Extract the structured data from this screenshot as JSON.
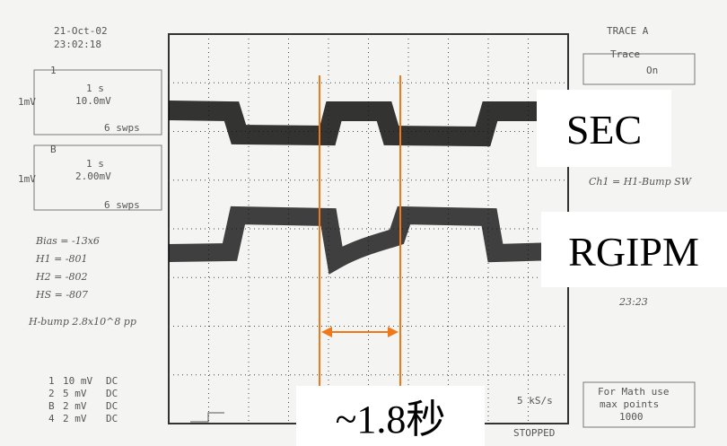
{
  "scope": {
    "date": "21-Oct-02",
    "time": "23:02:18",
    "trace_title": "TRACE A",
    "trace_label": "Trace",
    "trace_state": "On",
    "channel_1": {
      "number": "1",
      "scale_label": "1mV",
      "time": "1 s",
      "volts": "10.0mV",
      "sweeps": "6 swps"
    },
    "channel_2": {
      "number": "B",
      "scale_label": "1mV",
      "time": "1 s",
      "volts": "2.00mV",
      "sweeps": "6 swps"
    },
    "notes": [
      "Bias = -13x6",
      "H1 = -801",
      "H2 = -802",
      "HS = -807",
      "H-bump 2.8x10^8 pp"
    ],
    "right_notes": [
      "Ch1 = H1-Bump SW",
      "23:23"
    ],
    "channels": [
      [
        "1",
        "10 mV",
        "DC"
      ],
      [
        "2",
        "5 mV",
        "DC"
      ],
      [
        "B",
        "2 mV",
        "DC"
      ],
      [
        "4",
        "2 mV",
        "DC"
      ]
    ],
    "sample_rate": "5 kS/s",
    "status": "STOPPED",
    "math_note": [
      "For Math use",
      "max points",
      "1000"
    ]
  },
  "annotations": {
    "top_trace": "SEC",
    "bottom_trace": "RGIPM",
    "period": "~1.8秒"
  }
}
